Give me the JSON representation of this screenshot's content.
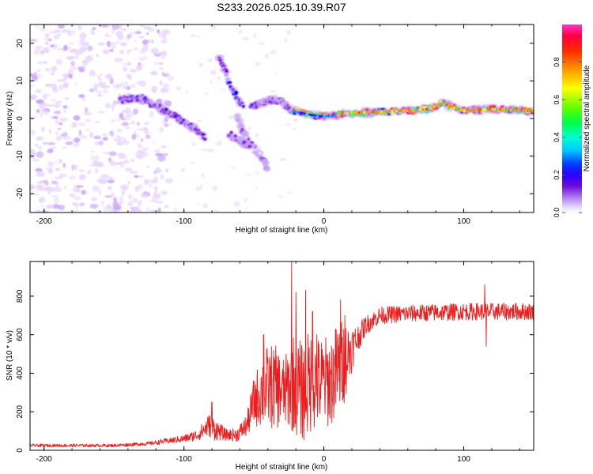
{
  "page": {
    "title": "S233.2026.025.10.39.R07"
  },
  "chart_data": [
    {
      "id": "spectrogram",
      "type": "heatmap",
      "xlabel": "Height of straight line (km)",
      "ylabel": "Frequency (Hz)",
      "xlim": [
        -210,
        150
      ],
      "ylim": [
        -25,
        25
      ],
      "x_ticks": [
        -200,
        -100,
        0,
        100
      ],
      "y_ticks": [
        -20,
        -10,
        0,
        10,
        20
      ],
      "colorbar": {
        "label": "Normalized spectral amplitude",
        "range": [
          0,
          1
        ],
        "ticks": [
          "0.0",
          "0.2",
          "0.4",
          "0.6",
          "0.8"
        ],
        "tick_values": [
          0.0,
          0.2,
          0.4,
          0.6,
          0.8
        ]
      },
      "colormap": [
        "#ffffff",
        "#e8d8ff",
        "#c8a6f5",
        "#8a2be2",
        "#5b00d6",
        "#0000ff",
        "#00e5ff",
        "#00ff00",
        "#ffff00",
        "#ff8000",
        "#ff0000",
        "#ff00aa"
      ],
      "features": [
        {
          "name": "main-track",
          "points": [
            [
              -145,
              5
            ],
            [
              -130,
              5.5
            ],
            [
              -118,
              3
            ],
            [
              -108,
              1
            ],
            [
              -95,
              -2
            ],
            [
              -85,
              -5
            ]
          ],
          "amplitude": 0.3
        },
        {
          "name": "rising-branch",
          "points": [
            [
              -75,
              16
            ],
            [
              -70,
              12
            ],
            [
              -64,
              7
            ],
            [
              -58,
              3
            ]
          ],
          "amplitude": 0.32
        },
        {
          "name": "falling-branch",
          "points": [
            [
              -62,
              0
            ],
            [
              -55,
              -5
            ],
            [
              -47,
              -9
            ],
            [
              -40,
              -13
            ]
          ],
          "amplitude": 0.2
        },
        {
          "name": "low-branch",
          "points": [
            [
              -68,
              -4
            ],
            [
              -60,
              -6
            ],
            [
              -53,
              -8
            ]
          ],
          "amplitude": 0.25
        },
        {
          "name": "mid-cluster",
          "points": [
            [
              -52,
              3
            ],
            [
              -45,
              4
            ],
            [
              -38,
              5
            ],
            [
              -30,
              4.5
            ],
            [
              -22,
              2
            ]
          ],
          "amplitude": 0.3
        },
        {
          "name": "tone-line",
          "points": [
            [
              -22,
              2
            ],
            [
              -10,
              1
            ],
            [
              0,
              0.5
            ],
            [
              20,
              1.5
            ],
            [
              50,
              2
            ],
            [
              75,
              2.5
            ],
            [
              85,
              4
            ],
            [
              100,
              2
            ],
            [
              120,
              2.5
            ],
            [
              150,
              2
            ]
          ],
          "amplitude": 0.75
        }
      ]
    },
    {
      "id": "snr",
      "type": "line",
      "xlabel": "Height of straight line (km)",
      "ylabel": "SNR (10 * v/v)",
      "xlim": [
        -210,
        150
      ],
      "ylim": [
        0,
        980
      ],
      "x_ticks": [
        -200,
        -100,
        0,
        100
      ],
      "y_ticks": [
        0,
        200,
        400,
        600,
        800
      ],
      "color": "#ee1c1c",
      "profile": [
        [
          -210,
          25,
          8
        ],
        [
          -180,
          25,
          8
        ],
        [
          -150,
          25,
          8
        ],
        [
          -125,
          35,
          10
        ],
        [
          -110,
          50,
          15
        ],
        [
          -100,
          60,
          20
        ],
        [
          -90,
          80,
          30
        ],
        [
          -82,
          130,
          60
        ],
        [
          -78,
          110,
          60
        ],
        [
          -70,
          80,
          30
        ],
        [
          -62,
          80,
          35
        ],
        [
          -55,
          130,
          60
        ],
        [
          -50,
          250,
          130
        ],
        [
          -45,
          300,
          180
        ],
        [
          -40,
          330,
          220
        ],
        [
          -35,
          330,
          220
        ],
        [
          -28,
          300,
          180
        ],
        [
          -22,
          350,
          260
        ],
        [
          -15,
          300,
          260
        ],
        [
          -10,
          350,
          280
        ],
        [
          -5,
          350,
          240
        ],
        [
          5,
          360,
          240
        ],
        [
          10,
          420,
          250
        ],
        [
          15,
          470,
          220
        ],
        [
          20,
          530,
          120
        ],
        [
          25,
          590,
          70
        ],
        [
          30,
          650,
          50
        ],
        [
          40,
          700,
          45
        ],
        [
          60,
          710,
          45
        ],
        [
          100,
          720,
          45
        ],
        [
          150,
          720,
          45
        ]
      ],
      "spikes": [
        [
          -80,
          250
        ],
        [
          -43,
          600
        ],
        [
          -40,
          480
        ],
        [
          -23,
          980
        ],
        [
          -20,
          820
        ],
        [
          -13,
          830
        ],
        [
          -8,
          720
        ],
        [
          -5,
          600
        ],
        [
          12,
          780
        ],
        [
          15,
          700
        ],
        [
          115,
          860
        ],
        [
          116,
          540
        ]
      ]
    }
  ]
}
